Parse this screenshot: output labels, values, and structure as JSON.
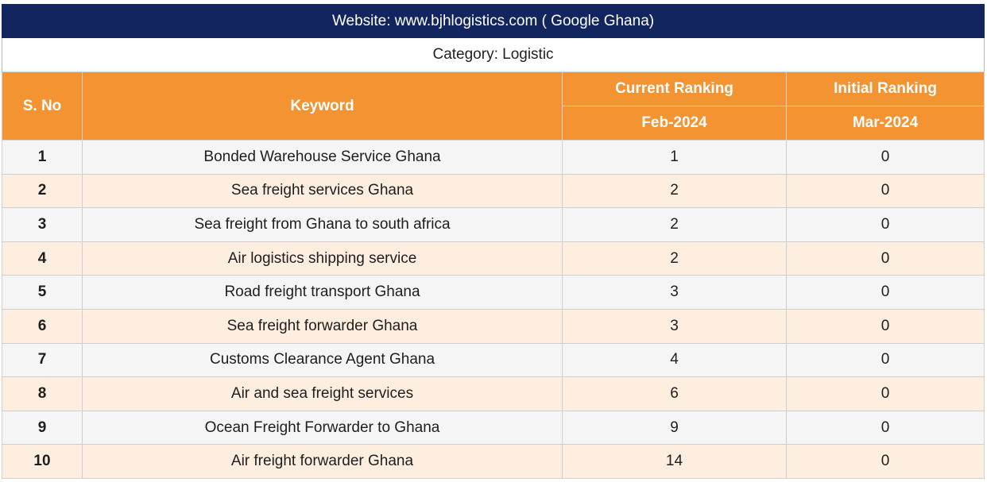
{
  "header": {
    "website": "Website: www.bjhlogistics.com ( Google Ghana)",
    "category": "Category: Logistic"
  },
  "columns": {
    "sno": "S. No",
    "keyword": "Keyword",
    "current": "Current Ranking",
    "initial": "Initial Ranking",
    "current_date": "Feb-2024",
    "initial_date": "Mar-2024"
  },
  "rows": [
    {
      "sno": "1",
      "keyword": "Bonded Warehouse Service Ghana",
      "current": "1",
      "initial": "0"
    },
    {
      "sno": "2",
      "keyword": "Sea freight services Ghana",
      "current": "2",
      "initial": "0"
    },
    {
      "sno": "3",
      "keyword": "Sea freight from Ghana to south africa",
      "current": "2",
      "initial": "0"
    },
    {
      "sno": "4",
      "keyword": "Air logistics shipping service",
      "current": "2",
      "initial": "0"
    },
    {
      "sno": "5",
      "keyword": "Road freight transport Ghana",
      "current": "3",
      "initial": "0"
    },
    {
      "sno": "6",
      "keyword": "Sea freight forwarder Ghana",
      "current": "3",
      "initial": "0"
    },
    {
      "sno": "7",
      "keyword": "Customs Clearance Agent Ghana",
      "current": "4",
      "initial": "0"
    },
    {
      "sno": "8",
      "keyword": "Air and sea freight services",
      "current": "6",
      "initial": "0"
    },
    {
      "sno": "9",
      "keyword": "Ocean Freight Forwarder to Ghana",
      "current": "9",
      "initial": "0"
    },
    {
      "sno": "10",
      "keyword": "Air freight forwarder Ghana",
      "current": "14",
      "initial": "0"
    }
  ],
  "colors": {
    "title_bg": "#12255e",
    "header_bg": "#f39331",
    "row_even_bg": "#f5f5f5",
    "row_odd_bg": "#fdeee0"
  }
}
